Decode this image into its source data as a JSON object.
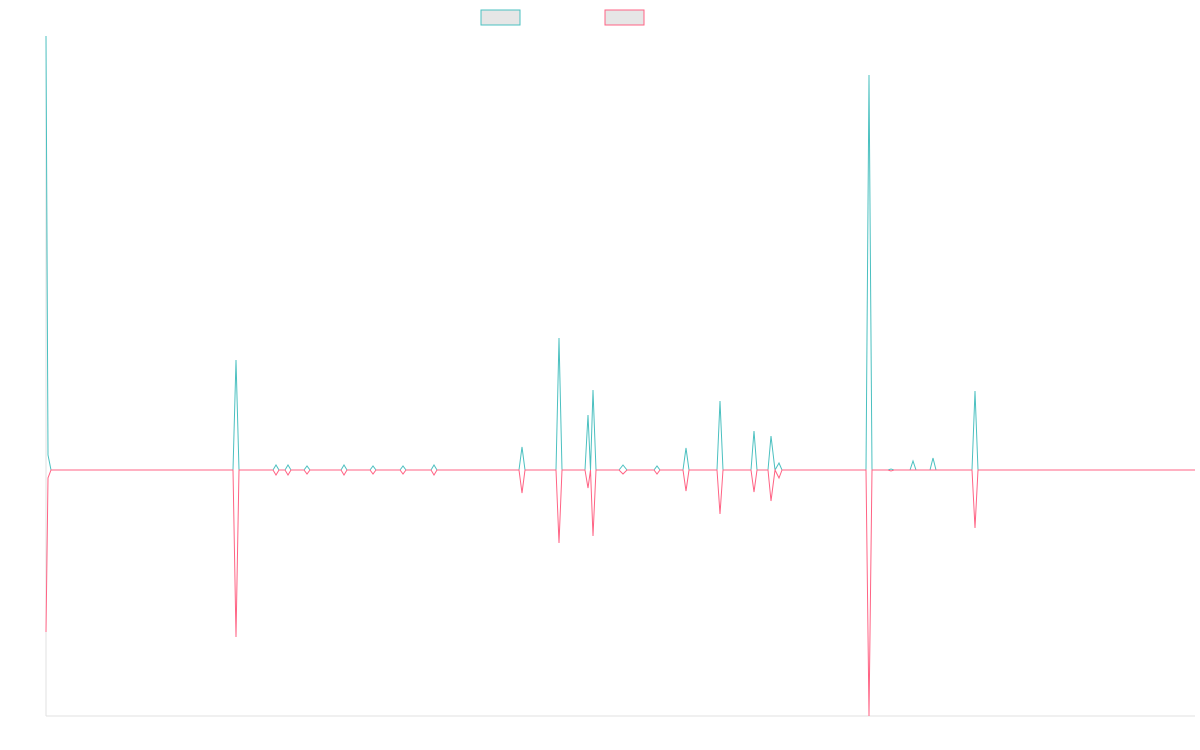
{
  "chart_data": {
    "type": "line",
    "x": [
      46,
      48,
      51,
      233,
      236,
      239,
      273,
      276,
      279,
      285,
      288,
      291,
      304,
      307,
      310,
      341,
      344,
      347,
      370,
      373,
      376,
      400,
      403,
      406,
      431,
      434,
      437,
      519,
      522,
      525,
      556,
      559,
      562,
      585,
      588,
      590.5,
      593,
      596,
      619,
      623,
      627,
      654,
      657,
      660,
      683,
      686,
      689,
      717,
      720,
      723,
      751,
      754,
      757,
      768,
      771,
      775,
      779,
      782,
      866,
      869,
      872,
      888,
      891,
      894,
      910,
      913,
      916,
      930,
      933,
      936,
      972,
      975,
      978,
      1195
    ],
    "series": [
      {
        "color": "#4bc0c0",
        "values": [
          434,
          15,
          0,
          0,
          110,
          0,
          0,
          5,
          0,
          0,
          5,
          0,
          0,
          4,
          0,
          0,
          5,
          0,
          0,
          4,
          0,
          0,
          4,
          0,
          0,
          5,
          0,
          0,
          23,
          0,
          0,
          132,
          0,
          0,
          55,
          0,
          80,
          0,
          0,
          5,
          0,
          0,
          4,
          0,
          0,
          22,
          0,
          0,
          69,
          0,
          0,
          39,
          0,
          0,
          34,
          0,
          7,
          0,
          0,
          395,
          0,
          0,
          1,
          0,
          0,
          9,
          0,
          0,
          12,
          0,
          0,
          79,
          0,
          0
        ]
      },
      {
        "color": "#ff6384",
        "values": [
          -162,
          -8,
          0,
          0,
          -167,
          0,
          0,
          -5,
          0,
          0,
          -5,
          0,
          0,
          -4,
          0,
          0,
          -5,
          0,
          0,
          -4,
          0,
          0,
          -4,
          0,
          0,
          -5,
          0,
          0,
          -23,
          0,
          0,
          -73,
          0,
          0,
          -18,
          0,
          -66,
          0,
          0,
          -4,
          0,
          0,
          -4,
          0,
          0,
          -21,
          0,
          0,
          -44,
          0,
          0,
          -22,
          0,
          0,
          -31,
          0,
          -8,
          0,
          0,
          -246,
          0,
          0,
          -1,
          0,
          0,
          0,
          0,
          0,
          0,
          0,
          0,
          -58,
          0,
          0
        ]
      }
    ],
    "xlim": [
      46,
      1195
    ],
    "ylim": [
      -246,
      434
    ],
    "legend": "top"
  }
}
